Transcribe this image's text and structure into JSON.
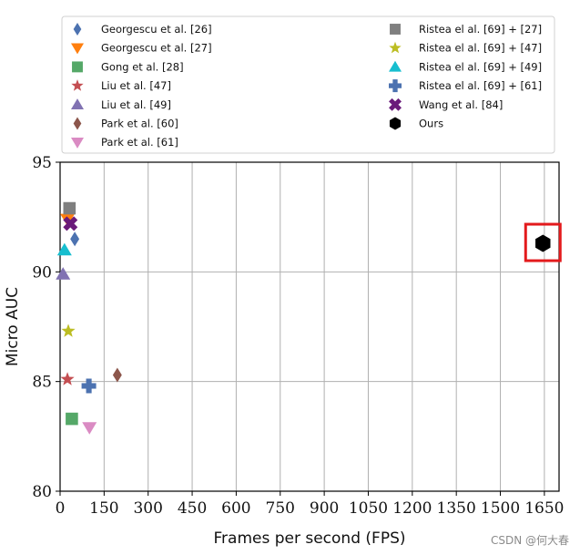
{
  "chart_data": {
    "type": "scatter",
    "title": "",
    "xlabel": "Frames per second (FPS)",
    "ylabel": "Micro AUC",
    "xlim": [
      0,
      1700
    ],
    "ylim": [
      80,
      95
    ],
    "xticks": [
      0,
      150,
      300,
      450,
      600,
      750,
      900,
      1050,
      1200,
      1350,
      1500,
      1650
    ],
    "yticks": [
      80,
      85,
      90,
      95
    ],
    "grid": true,
    "legend_position": "top",
    "highlight": {
      "series": "Ours",
      "color": "#e31a1c"
    },
    "series": [
      {
        "name": "Georgescu et al. [26]",
        "marker": "diamond",
        "color": "#4c72b0",
        "x": 50,
        "y": 91.5
      },
      {
        "name": "Georgescu et al. [27]",
        "marker": "triangle-down",
        "color": "#ff7f0e",
        "x": 25,
        "y": 92.4
      },
      {
        "name": "Gong et al. [28]",
        "marker": "square",
        "color": "#55a868",
        "x": 40,
        "y": 83.3
      },
      {
        "name": "Liu et al. [47]",
        "marker": "star",
        "color": "#c44e52",
        "x": 25,
        "y": 85.1
      },
      {
        "name": "Liu et al. [49]",
        "marker": "triangle-up",
        "color": "#8172b2",
        "x": 10,
        "y": 89.9
      },
      {
        "name": "Park et al. [60]",
        "marker": "diamond",
        "color": "#8c564b",
        "x": 195,
        "y": 85.3
      },
      {
        "name": "Park et al. [61]",
        "marker": "triangle-down",
        "color": "#da8bc3",
        "x": 100,
        "y": 82.9
      },
      {
        "name": "Ristea el al. [69] + [27]",
        "marker": "square",
        "color": "#7f7f7f",
        "x": 32,
        "y": 92.9
      },
      {
        "name": "Ristea el al. [69] + [47]",
        "marker": "star",
        "color": "#bcbd22",
        "x": 28,
        "y": 87.3
      },
      {
        "name": "Ristea el al. [69] + [49]",
        "marker": "triangle-up",
        "color": "#17becf",
        "x": 15,
        "y": 91.0
      },
      {
        "name": "Ristea el al. [69] + [61]",
        "marker": "plus",
        "color": "#4c72b0",
        "x": 98,
        "y": 84.8
      },
      {
        "name": "Wang et al. [84]",
        "marker": "x",
        "color": "#6a1b7a",
        "x": 35,
        "y": 92.2
      },
      {
        "name": "Ours",
        "marker": "hexagon",
        "color": "#000000",
        "x": 1645,
        "y": 91.3
      }
    ]
  },
  "watermark": "CSDN @何大春"
}
